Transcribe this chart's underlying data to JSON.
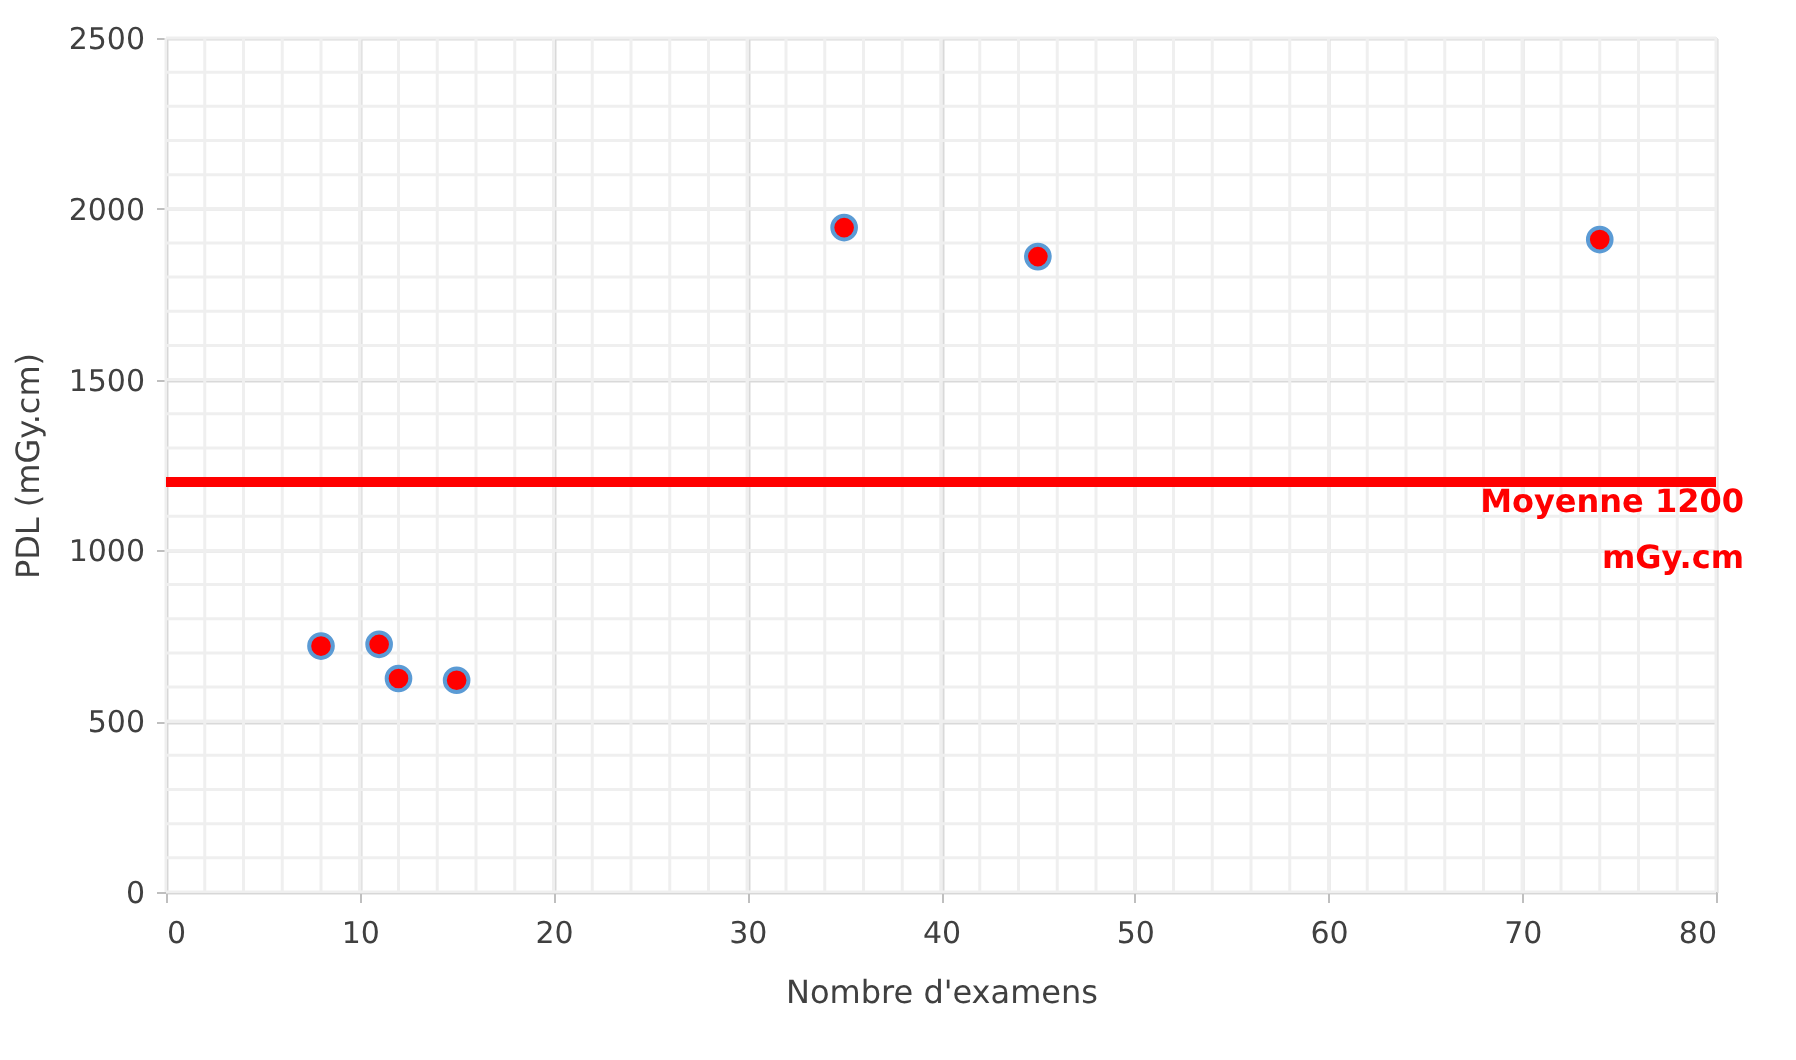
{
  "chart_data": {
    "type": "scatter",
    "xlabel": "Nombre d'examens",
    "ylabel": "PDL (mGy.cm)",
    "x": [
      8,
      11,
      12,
      15,
      35,
      45,
      74
    ],
    "series": [
      {
        "color": "#ff0000",
        "values": [
          720,
          725,
          625,
          620,
          1945,
          1860,
          1910
        ]
      }
    ],
    "xlim": [
      0,
      80
    ],
    "xticks": [
      0,
      10,
      20,
      30,
      40,
      50,
      60,
      70,
      80
    ],
    "ylim": [
      0,
      2500
    ],
    "yticks": [
      0,
      500,
      1000,
      1500,
      2000,
      2500
    ],
    "ref_lines": [
      {
        "axis": "y",
        "value": 1200,
        "label": "Moyenne 1200 mGy.cm",
        "color": "#ff0000"
      }
    ],
    "grid": true,
    "marker": "circle"
  }
}
